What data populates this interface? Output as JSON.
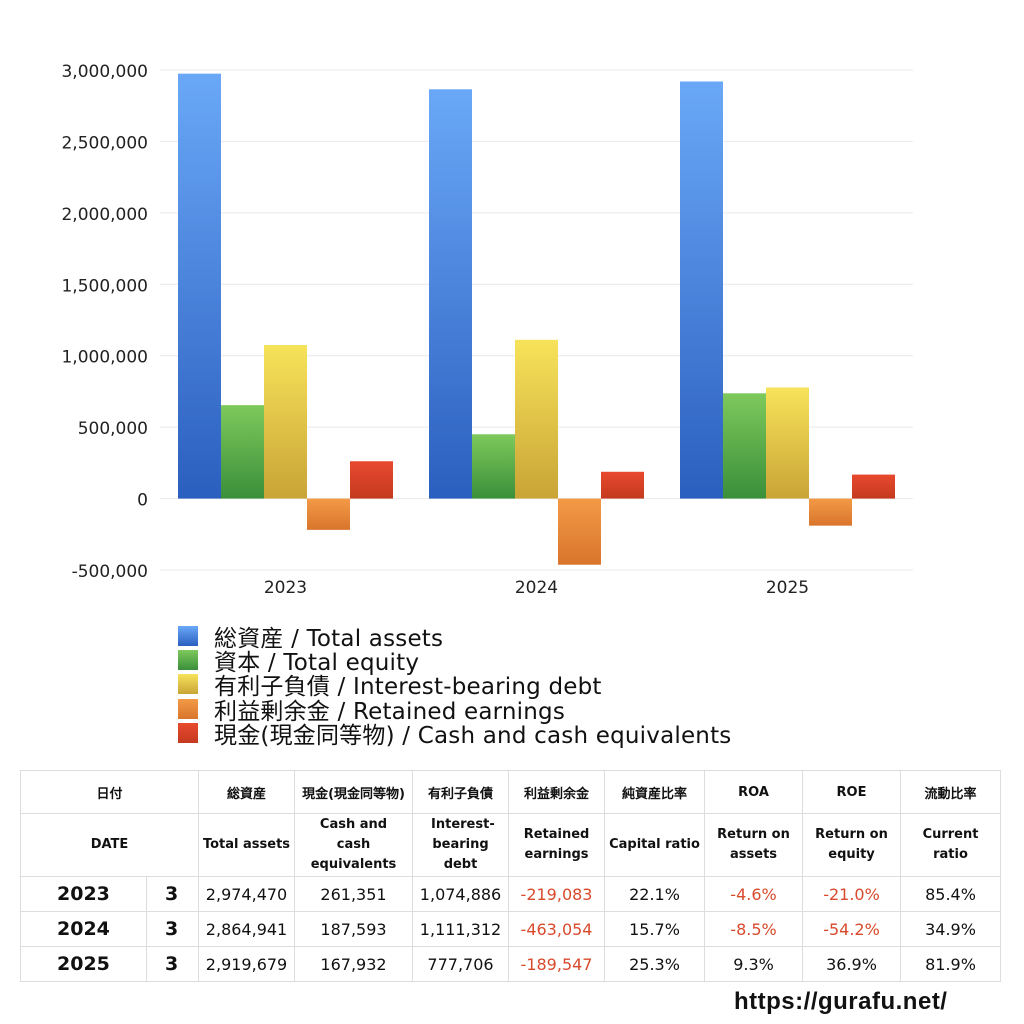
{
  "chart_data": {
    "type": "bar",
    "categories": [
      "2023",
      "2024",
      "2025"
    ],
    "series": [
      {
        "name": "総資産 / Total assets",
        "values": [
          2974470,
          2864941,
          2919679
        ],
        "color_top": "#6aa8f7",
        "color_bottom": "#2b5fbf"
      },
      {
        "name": "資本 / Total equity",
        "values": [
          654000,
          450000,
          737000
        ],
        "color_top": "#7ec95c",
        "color_bottom": "#3a8f3a"
      },
      {
        "name": "有利子負債 / Interest-bearing debt",
        "values": [
          1074886,
          1111312,
          777706
        ],
        "color_top": "#f7e35a",
        "color_bottom": "#c9a436"
      },
      {
        "name": "利益剰余金 / Retained earnings",
        "values": [
          -219083,
          -463054,
          -189547
        ],
        "color_top": "#f39a46",
        "color_bottom": "#d9752c"
      },
      {
        "name": "現金(現金同等物)  /  Cash and cash equivalents",
        "values": [
          261351,
          187593,
          167932
        ],
        "color_top": "#e8492e",
        "color_bottom": "#c43a1f"
      }
    ],
    "ylim": [
      -500000,
      3000000
    ],
    "yticks": [
      "3,000,000",
      "2,500,000",
      "2,000,000",
      "1,500,000",
      "1,000,000",
      "500,000",
      "0",
      "-500,000"
    ],
    "grid": true,
    "legend_position": "bottom"
  },
  "table": {
    "headers_jp": [
      "日付",
      "総資産",
      "現金(現金同等物)",
      "有利子負債",
      "利益剰余金",
      "純資産比率",
      "ROA",
      "ROE",
      "流動比率"
    ],
    "headers_en": [
      "DATE",
      "Total assets",
      "Cash and cash equivalents",
      "Interest-bearing debt",
      "Retained earnings",
      "Capital ratio",
      "Return on assets",
      "Return on equity",
      "Current ratio"
    ],
    "rows": [
      {
        "year": "2023",
        "month": "3",
        "cells": [
          "2,974,470",
          "261,351",
          "1,074,886",
          "-219,083",
          "22.1%",
          "-4.6%",
          "-21.0%",
          "85.4%"
        ]
      },
      {
        "year": "2024",
        "month": "3",
        "cells": [
          "2,864,941",
          "187,593",
          "1,111,312",
          "-463,054",
          "15.7%",
          "-8.5%",
          "-54.2%",
          "34.9%"
        ]
      },
      {
        "year": "2025",
        "month": "3",
        "cells": [
          "2,919,679",
          "167,932",
          "777,706",
          "-189,547",
          "25.3%",
          "9.3%",
          "36.9%",
          "81.9%"
        ]
      }
    ]
  },
  "site": "https://gurafu.net/"
}
